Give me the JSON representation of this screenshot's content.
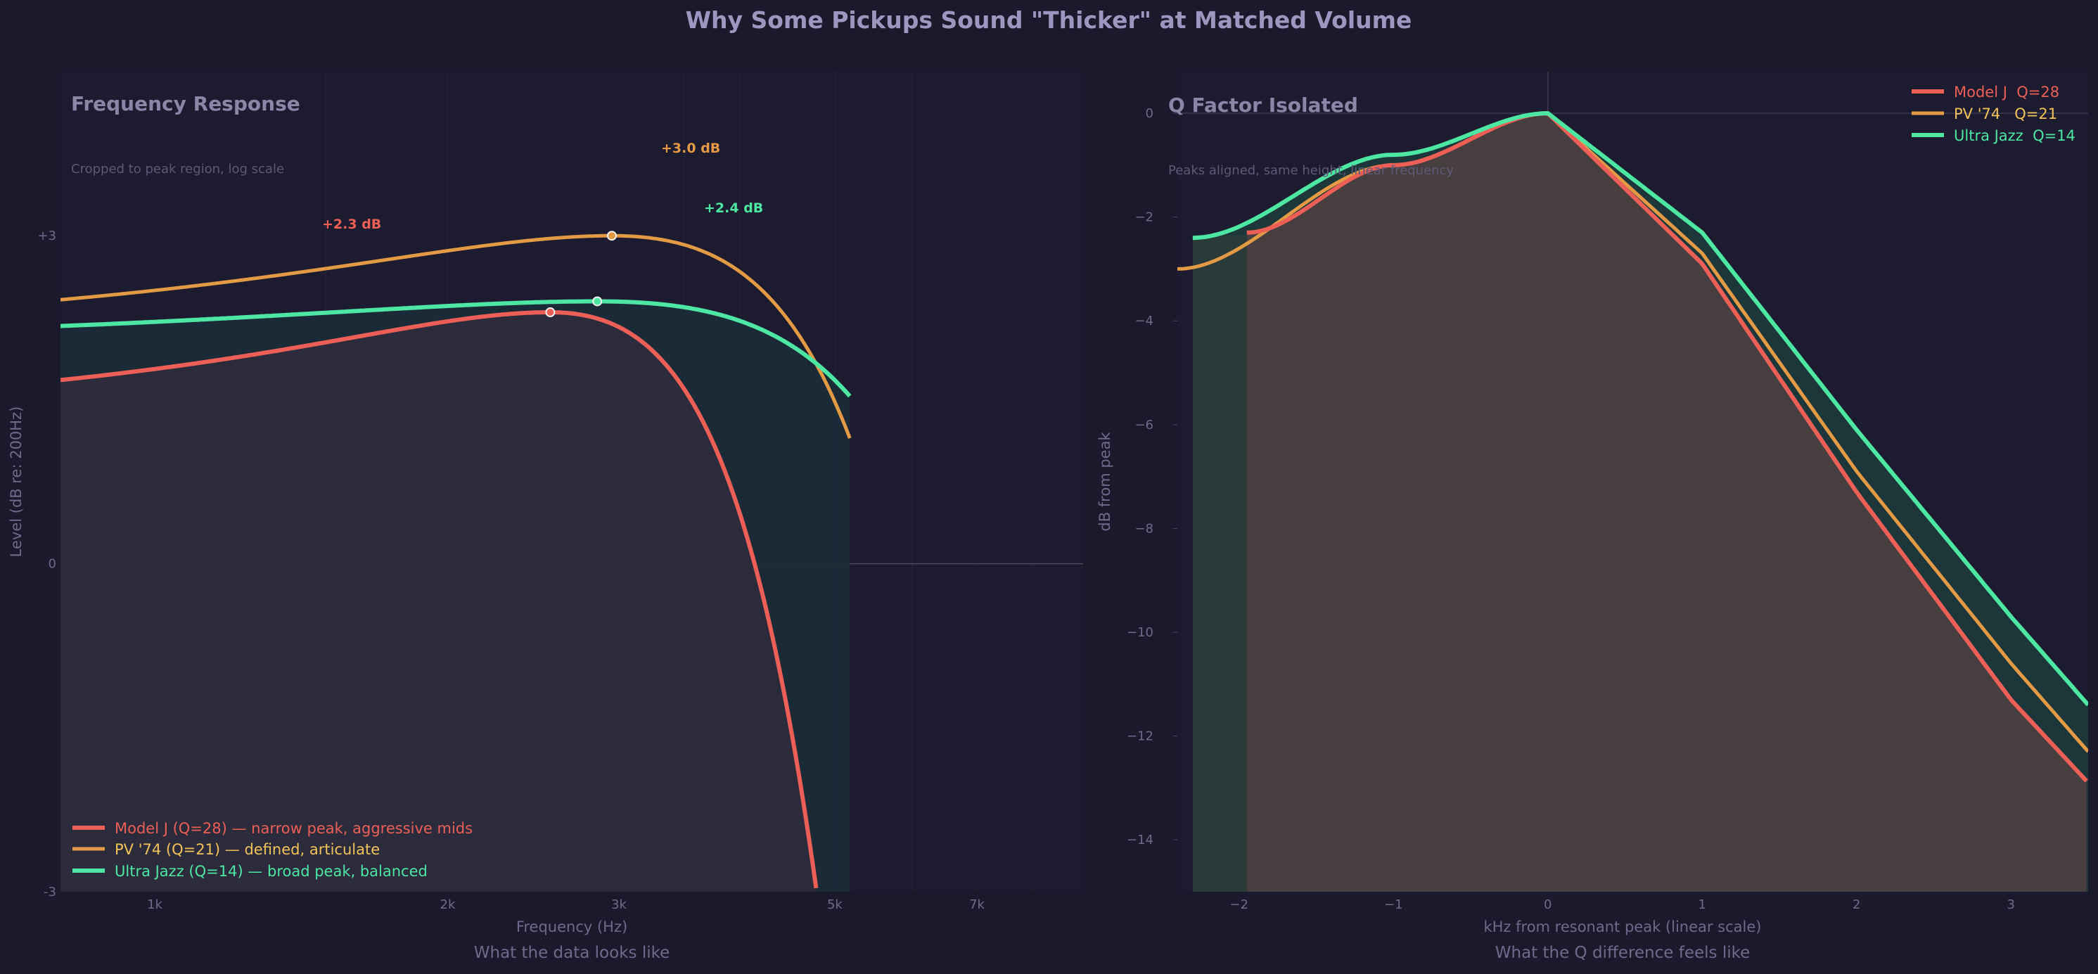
{
  "title": "Why Some Pickups Sound \"Thicker\" at Matched Volume",
  "colors": {
    "background": "#1b1a2d",
    "model_j": "#ec5f57",
    "pv74": "#e39a45",
    "ultra_jazz": "#4de6a2",
    "muted_text": "#8a86a8",
    "faint_text": "#5d5a78",
    "title_text": "#9c97bf"
  },
  "chart_data": [
    {
      "type": "line",
      "title": "Frequency Response",
      "subtitle": "Cropped to peak region, log scale",
      "caption": "What the data looks like",
      "xlabel": "Frequency (Hz)",
      "ylabel": "Level (dB re: 200Hz)",
      "x_scale": "log",
      "xlim": [
        800,
        9000
      ],
      "ylim": [
        -3,
        4.5
      ],
      "xticks": [
        {
          "value": 1000,
          "label": "1k"
        },
        {
          "value": 2000,
          "label": "2k"
        },
        {
          "value": 3000,
          "label": "3k"
        },
        {
          "value": 5000,
          "label": "5k"
        },
        {
          "value": 7000,
          "label": "7k"
        }
      ],
      "yticks": [
        {
          "value": 3,
          "label": "+3"
        },
        {
          "value": 0,
          "label": "0"
        },
        {
          "value": -3,
          "label": "-3"
        }
      ],
      "legend_position": "bottom-left",
      "series": [
        {
          "name": "Model J",
          "legend": "Model J (Q=28) — narrow peak, aggressive mids",
          "q": 28,
          "peak_hz": 2550,
          "peak_db": 2.3,
          "label": "+2.3 dB"
        },
        {
          "name": "PV '74",
          "legend": "PV '74 (Q=21) — defined, articulate",
          "q": 21,
          "peak_hz": 2950,
          "peak_db": 3.0,
          "label": "+3.0 dB"
        },
        {
          "name": "Ultra Jazz",
          "legend": "Ultra Jazz (Q=14) — broad peak, balanced",
          "q": 14,
          "peak_hz": 2850,
          "peak_db": 2.4,
          "label": "+2.4 dB"
        }
      ]
    },
    {
      "type": "area",
      "title": "Q Factor Isolated",
      "subtitle": "Peaks aligned, same height, linear frequency",
      "caption": "What the Q difference feels like",
      "xlabel": "kHz from resonant peak (linear scale)",
      "ylabel": "dB from peak",
      "xlim": [
        -2.4,
        3.5
      ],
      "ylim": [
        -15,
        0.8
      ],
      "xticks": [
        {
          "value": -2,
          "label": "−2"
        },
        {
          "value": -1,
          "label": "−1"
        },
        {
          "value": 0,
          "label": "0"
        },
        {
          "value": 1,
          "label": "1"
        },
        {
          "value": 2,
          "label": "2"
        },
        {
          "value": 3,
          "label": "3"
        }
      ],
      "yticks": [
        {
          "value": 0,
          "label": "0"
        },
        {
          "value": -2,
          "label": "−2"
        },
        {
          "value": -4,
          "label": "−4"
        },
        {
          "value": -6,
          "label": "−6"
        },
        {
          "value": -8,
          "label": "−8"
        },
        {
          "value": -10,
          "label": "−10"
        },
        {
          "value": -12,
          "label": "−12"
        },
        {
          "value": -14,
          "label": "−14"
        }
      ],
      "legend_position": "top-right",
      "series": [
        {
          "name": "Model J",
          "legend": "Model J  Q=28",
          "start_khz": -1.95,
          "values_at": {
            "-1.95": -2.3,
            "-1": -1.0,
            "0": 0,
            "1": -2.9,
            "2": -7.3,
            "3": -11.3,
            "3.5": -12.9
          }
        },
        {
          "name": "PV '74",
          "legend": "PV '74   Q=21",
          "start_khz": -2.4,
          "values_at": {
            "-2.4": -3.0,
            "-1": -1.0,
            "0": 0,
            "1": -2.7,
            "2": -6.9,
            "3": -10.6,
            "3.5": -12.3
          }
        },
        {
          "name": "Ultra Jazz",
          "legend": "Ultra Jazz  Q=14",
          "start_khz": -2.3,
          "values_at": {
            "-2.3": -2.4,
            "-1": -0.8,
            "0": 0,
            "1": -2.3,
            "2": -6.1,
            "3": -9.7,
            "3.5": -11.4
          }
        }
      ]
    }
  ]
}
